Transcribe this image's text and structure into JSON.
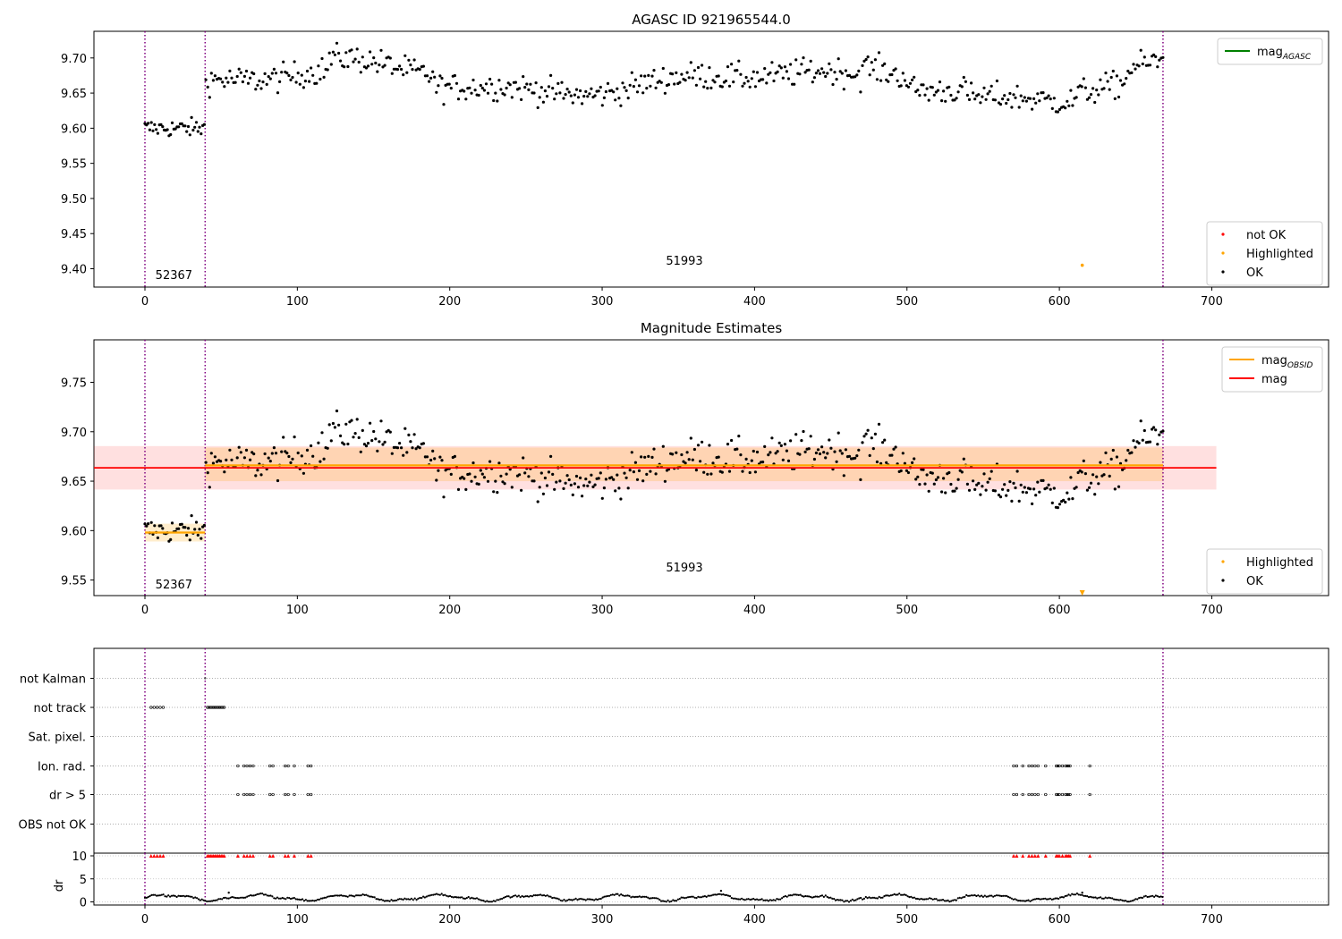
{
  "chart_data": [
    {
      "type": "scatter",
      "title": "AGASC ID 921965544.0",
      "xlim": [
        -34,
        1388
      ],
      "ylim": [
        9.377,
        9.737
      ],
      "xticks": [
        0,
        100,
        200,
        300,
        400,
        500,
        600,
        700
      ],
      "yticks": [
        9.4,
        9.45,
        9.5,
        9.55,
        9.6,
        9.65,
        9.7
      ],
      "obsid_boundaries": [
        0,
        39.5,
        668
      ],
      "obsid_labels": [
        {
          "text": "52367",
          "x": 19,
          "y": 9.392
        },
        {
          "text": "51993",
          "x": 354,
          "y": 9.412
        }
      ],
      "legend_top": {
        "placement": "top-right",
        "entries": [
          {
            "label": "mag",
            "subscript": "AGASC",
            "color": "#008000"
          }
        ]
      },
      "legend_bottom": {
        "placement": "bottom-right",
        "entries": [
          {
            "label": "not OK",
            "color": "#ff0000"
          },
          {
            "label": "Highlighted",
            "color": "#ffa500"
          },
          {
            "label": "OK",
            "color": "#000000"
          }
        ]
      },
      "series": [
        {
          "name": "OK",
          "color": "#000000",
          "segments": [
            {
              "x_start": 0,
              "x_end": 39,
              "count": 38,
              "mean": 9.6,
              "spread": 0.011
            },
            {
              "x_start": 40,
              "x_end": 668,
              "count": 520,
              "mean": 9.665,
              "spread": 0.016
            }
          ]
        },
        {
          "name": "Highlighted",
          "color": "#ffa500",
          "points": [
            {
              "x": 615,
              "y": 9.405
            }
          ]
        }
      ]
    },
    {
      "type": "scatter",
      "title": "Magnitude Estimates",
      "xlim": [
        -34,
        1388
      ],
      "ylim": [
        9.534,
        9.793
      ],
      "xticks": [
        0,
        100,
        200,
        300,
        400,
        500,
        600,
        700
      ],
      "yticks": [
        9.55,
        9.6,
        9.65,
        9.7,
        9.75
      ],
      "obsid_boundaries": [
        0,
        39.5,
        668
      ],
      "obsid_labels": [
        {
          "text": "52367",
          "x": 19,
          "y": 9.546
        },
        {
          "text": "51993",
          "x": 354,
          "y": 9.563
        }
      ],
      "mag": {
        "value": 9.6635,
        "band": [
          9.6415,
          9.6855
        ],
        "x_range": [
          -34,
          703
        ]
      },
      "mag_obsid": [
        {
          "x_range": [
            0,
            39.5
          ],
          "value": 9.598,
          "band": [
            9.589,
            9.607
          ]
        },
        {
          "x_range": [
            39.5,
            668
          ],
          "value": 9.666,
          "band": [
            9.65,
            9.684
          ]
        }
      ],
      "legend_top": {
        "placement": "top-right",
        "entries": [
          {
            "label": "mag",
            "subscript": "OBSID",
            "color": "#ffa500"
          },
          {
            "label": "mag",
            "color": "#ff0000"
          }
        ]
      },
      "legend_bottom": {
        "placement": "bottom-right",
        "entries": [
          {
            "label": "Highlighted",
            "color": "#ffa500"
          },
          {
            "label": "OK",
            "color": "#000000"
          }
        ]
      },
      "series": [
        {
          "name": "OK",
          "color": "#000000"
        },
        {
          "name": "Highlighted",
          "color": "#ffa500",
          "points": [
            {
              "x": 615,
              "y": 9.537
            }
          ]
        }
      ]
    },
    {
      "type": "scatter",
      "title": "",
      "ylabel": "",
      "xlim": [
        -34,
        1388
      ],
      "categories": [
        "not Kalman",
        "not track",
        "Sat. pixel.",
        "Ion. rad.",
        "dr > 5",
        "OBS not OK"
      ],
      "flags": {
        "not track": [
          4,
          6,
          8,
          10,
          12,
          41,
          42,
          43,
          44,
          45,
          46,
          47,
          48,
          49,
          50,
          51,
          52
        ],
        "Ion. rad.": [
          61,
          65,
          67,
          69,
          71,
          82,
          84,
          92,
          94,
          98,
          107,
          109,
          570,
          572,
          576,
          580,
          582,
          584,
          586,
          591,
          598,
          599,
          600,
          602,
          604,
          605,
          606,
          607,
          620
        ],
        "dr > 5": [
          61,
          65,
          67,
          69,
          71,
          82,
          84,
          92,
          94,
          98,
          107,
          109,
          570,
          572,
          576,
          580,
          582,
          584,
          586,
          591,
          598,
          599,
          600,
          602,
          604,
          605,
          606,
          607,
          620
        ]
      },
      "xticks": [
        0,
        100,
        200,
        300,
        400,
        500,
        600,
        700
      ]
    },
    {
      "type": "scatter",
      "title": "",
      "ylabel": "dr",
      "xlim": [
        -34,
        1388
      ],
      "ylim": [
        -0.5,
        11
      ],
      "yticks": [
        0,
        5,
        10
      ],
      "xticks": [
        0,
        100,
        200,
        300,
        400,
        500,
        600,
        700
      ],
      "dr_cap": 10,
      "dr_outliers": [
        {
          "x": 378,
          "y": 2.4
        },
        {
          "x": 55,
          "y": 2.0
        },
        {
          "x": 615,
          "y": 2.0
        }
      ]
    }
  ]
}
